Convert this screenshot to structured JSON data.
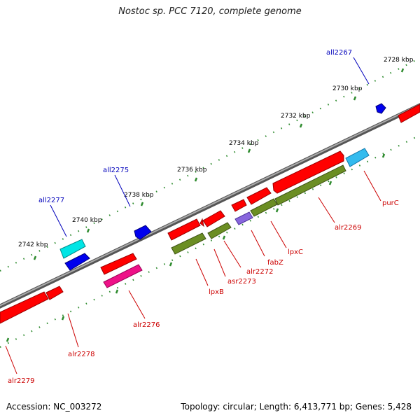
{
  "header": {
    "title": "Nostoc sp. PCC 7120, complete genome"
  },
  "footer": {
    "accession": "Accession: NC_003272",
    "summary": "Topology: circular; Length: 6,413,771 bp; Genes: 5,428"
  },
  "colors": {
    "forward_label": "#cc0000",
    "reverse_label": "#0000bb",
    "backbone": "#8c8c8c",
    "tick": "#2e8b2e"
  },
  "scale_labels": [
    "2728 kbp",
    "2730 kbp",
    "2732 kbp",
    "2734 kbp",
    "2736 kbp",
    "2738 kbp",
    "2740 kbp",
    "2742 kbp"
  ],
  "genes": [
    {
      "name": "all2267",
      "strand": "reverse",
      "color": "#0000ee"
    },
    {
      "name": "all2275",
      "strand": "reverse",
      "color": "#0000ee"
    },
    {
      "name": "all2277",
      "strand": "reverse",
      "color": "#00e5e5"
    },
    {
      "name": "purC",
      "strand": "forward",
      "color": "#33bbee"
    },
    {
      "name": "alr2269",
      "strand": "forward",
      "color": "#ff0000"
    },
    {
      "name": "lpxC",
      "strand": "forward",
      "color": "#ff0000"
    },
    {
      "name": "fabZ",
      "strand": "forward",
      "color": "#8866dd"
    },
    {
      "name": "alr2272",
      "strand": "forward",
      "color": "#ff0000"
    },
    {
      "name": "asr2273",
      "strand": "forward",
      "color": "#ff0000"
    },
    {
      "name": "lpxB",
      "strand": "forward",
      "color": "#ff0000"
    },
    {
      "name": "alr2276",
      "strand": "forward",
      "color": "#ee1188"
    },
    {
      "name": "alr2278",
      "strand": "forward",
      "color": "#ff0000"
    },
    {
      "name": "alr2279",
      "strand": "forward",
      "color": "#ff0000"
    }
  ]
}
